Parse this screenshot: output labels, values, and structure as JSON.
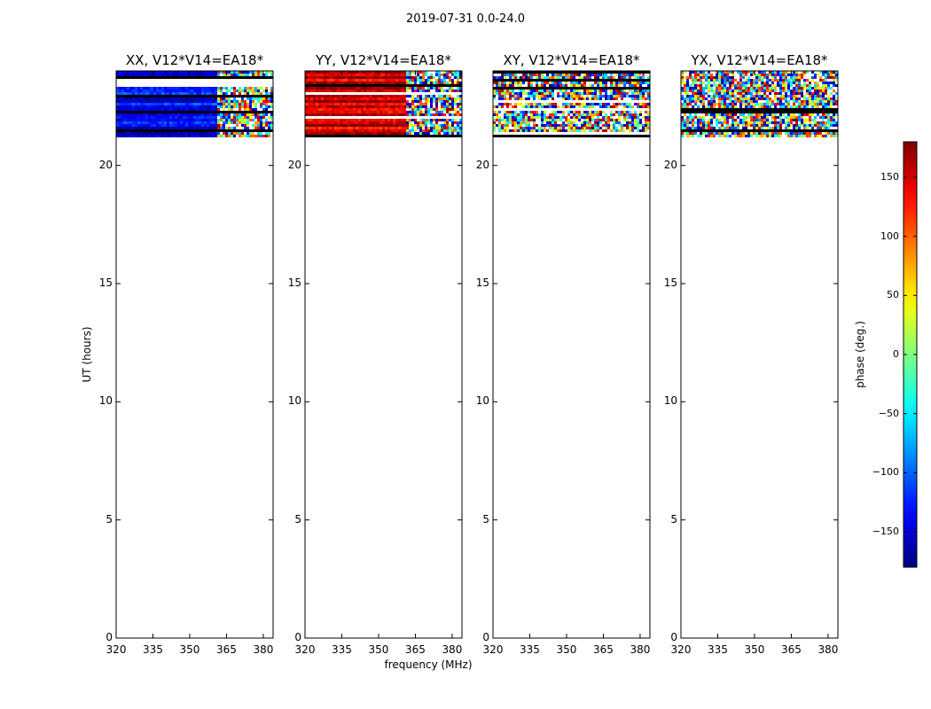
{
  "figure": {
    "suptitle": "2019-07-31 0.0-24.0",
    "xlabel": "frequency (MHz)",
    "ylabel": "UT (hours)",
    "cbar_label": "phase (deg.)",
    "cbar_ticks": [
      150,
      100,
      50,
      0,
      -50,
      -100,
      -150
    ],
    "cbar_tick_labels": [
      "150",
      "100",
      "50",
      "0",
      "−50",
      "−100",
      "−150"
    ],
    "x_tick_labels": [
      "320",
      "335",
      "350",
      "365",
      "380"
    ],
    "y_tick_labels": [
      "0",
      "5",
      "10",
      "15",
      "20"
    ]
  },
  "chart_data": [
    {
      "type": "heatmap",
      "title": "XX, V12*V14=EA18*",
      "x": [
        320,
        335,
        350,
        365,
        380
      ],
      "xlim": [
        320,
        384
      ],
      "ylim": [
        0,
        24
      ],
      "data_time_range_hours": [
        21.2,
        24.0
      ],
      "dominant_phase_deg": -140,
      "rfi_from_MHz": 361,
      "value_label": "phase (deg.)",
      "vlim": [
        -180,
        180
      ]
    },
    {
      "type": "heatmap",
      "title": "YY, V12*V14=EA18*",
      "x": [
        320,
        335,
        350,
        365,
        380
      ],
      "xlim": [
        320,
        384
      ],
      "ylim": [
        0,
        24
      ],
      "data_time_range_hours": [
        21.2,
        24.0
      ],
      "dominant_phase_deg": 150,
      "rfi_from_MHz": 361,
      "value_label": "phase (deg.)",
      "vlim": [
        -180,
        180
      ]
    },
    {
      "type": "heatmap",
      "title": "XY, V12*V14=EA18*",
      "x": [
        320,
        335,
        350,
        365,
        380
      ],
      "xlim": [
        320,
        384
      ],
      "ylim": [
        0,
        24
      ],
      "data_time_range_hours": [
        21.2,
        24.0
      ],
      "dominant_phase_deg": null,
      "rfi_from_MHz": 320,
      "value_label": "phase (deg.)",
      "vlim": [
        -180,
        180
      ]
    },
    {
      "type": "heatmap",
      "title": "YX, V12*V14=EA18*",
      "x": [
        320,
        335,
        350,
        365,
        380
      ],
      "xlim": [
        320,
        384
      ],
      "ylim": [
        0,
        24
      ],
      "data_time_range_hours": [
        21.2,
        24.0
      ],
      "dominant_phase_deg": null,
      "rfi_from_MHz": 320,
      "value_label": "phase (deg.)",
      "vlim": [
        -180,
        180
      ]
    }
  ]
}
